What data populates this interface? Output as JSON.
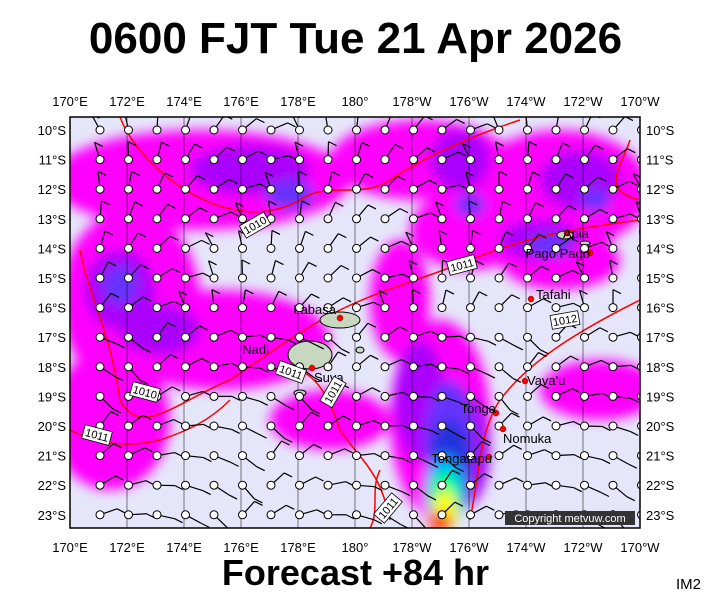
{
  "title": "0600 FJT Tue 21 Apr 2026",
  "footer": "Forecast +84 hr",
  "panel_id": "IM2",
  "copyright": "Copyright metvuw.com",
  "map": {
    "lon_labels": [
      "170°E",
      "172°E",
      "174°E",
      "176°E",
      "178°E",
      "180°",
      "178°W",
      "176°W",
      "174°W",
      "172°W",
      "170°W"
    ],
    "lat_labels": [
      "10°S",
      "11°S",
      "12°S",
      "13°S",
      "14°S",
      "15°S",
      "16°S",
      "17°S",
      "18°S",
      "19°S",
      "20°S",
      "21°S",
      "22°S",
      "23°S"
    ],
    "extent": {
      "lon_west": "170°E",
      "lon_east": "170°W",
      "lat_north": "9.6°S",
      "lat_south": "23.5°S"
    },
    "places": [
      "Labasa",
      "Nadi",
      "Suva",
      "Apia",
      "Pago Pago",
      "Tafahi",
      "Vava'u",
      "Tonga",
      "Nomuka",
      "Tongatapu"
    ],
    "isobar_labels": [
      "1010",
      "1011",
      "1012",
      "1011",
      "1011",
      "1010",
      "1011",
      "1011"
    ],
    "isobar_color": "#ff0000",
    "rain_colors": [
      "#e6e6fa",
      "#ff00ff",
      "#aa00ff",
      "#6633ff",
      "#2233dd",
      "#00aaff",
      "#00ff88",
      "#ffff00",
      "#ff4400"
    ]
  }
}
